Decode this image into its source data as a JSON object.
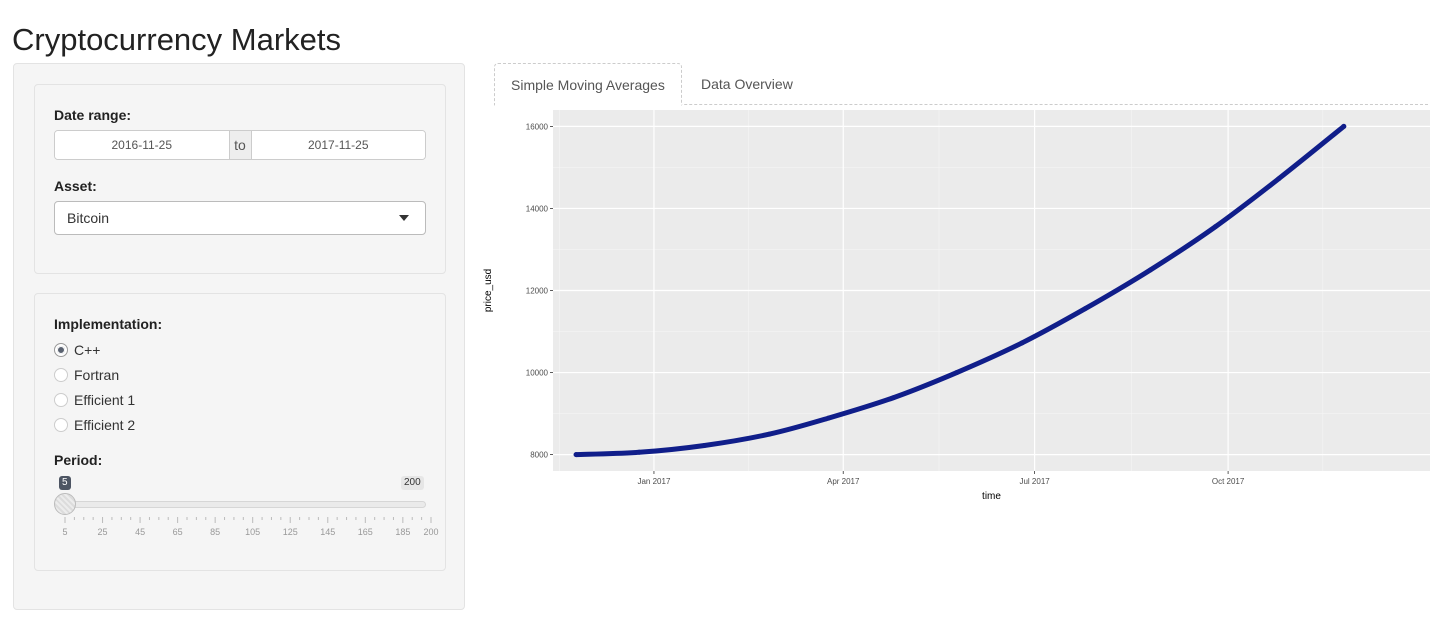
{
  "app": {
    "title": "Cryptocurrency Markets"
  },
  "sidebar": {
    "date_range": {
      "label": "Date range:",
      "start": "2016-11-25",
      "separator": "to",
      "end": "2017-11-25"
    },
    "asset": {
      "label": "Asset:",
      "selected": "Bitcoin"
    },
    "implementation": {
      "label": "Implementation:",
      "options": [
        "C++",
        "Fortran",
        "Efficient 1",
        "Efficient 2"
      ],
      "selected": "C++"
    },
    "period": {
      "label": "Period:",
      "min": 5,
      "max": 200,
      "value": 5,
      "min_badge": "5",
      "max_badge": "200",
      "scale_labels": [
        "5",
        "25",
        "45",
        "65",
        "85",
        "105",
        "125",
        "145",
        "165",
        "185",
        "200"
      ]
    }
  },
  "tabs": [
    {
      "label": "Simple Moving Averages",
      "active": true
    },
    {
      "label": "Data Overview",
      "active": false
    }
  ],
  "chart_data": {
    "type": "line",
    "xlabel": "time",
    "ylabel": "price_usd",
    "x_ticks": [
      {
        "label": "Jan 2017",
        "date": "2017-01-01"
      },
      {
        "label": "Apr 2017",
        "date": "2017-04-01"
      },
      {
        "label": "Jul 2017",
        "date": "2017-07-01"
      },
      {
        "label": "Oct 2017",
        "date": "2017-10-01"
      }
    ],
    "y_ticks": [
      8000,
      10000,
      12000,
      14000,
      16000
    ],
    "xlim": [
      "2016-11-14",
      "2018-01-05"
    ],
    "ylim": [
      7600,
      16400
    ],
    "grid": true,
    "series_color": "#101e8a",
    "background_color": "#ebebeb",
    "series": [
      {
        "x": [
          "2016-11-25",
          "2016-12-25",
          "2017-01-25",
          "2017-02-25",
          "2017-03-25",
          "2017-04-25",
          "2017-05-25",
          "2017-06-25",
          "2017-07-25",
          "2017-08-25",
          "2017-09-25",
          "2017-10-25",
          "2017-11-25"
        ],
        "values": [
          8000,
          8056,
          8222,
          8500,
          8889,
          9389,
          10000,
          10722,
          11556,
          12500,
          13556,
          14722,
          16000
        ]
      }
    ]
  }
}
